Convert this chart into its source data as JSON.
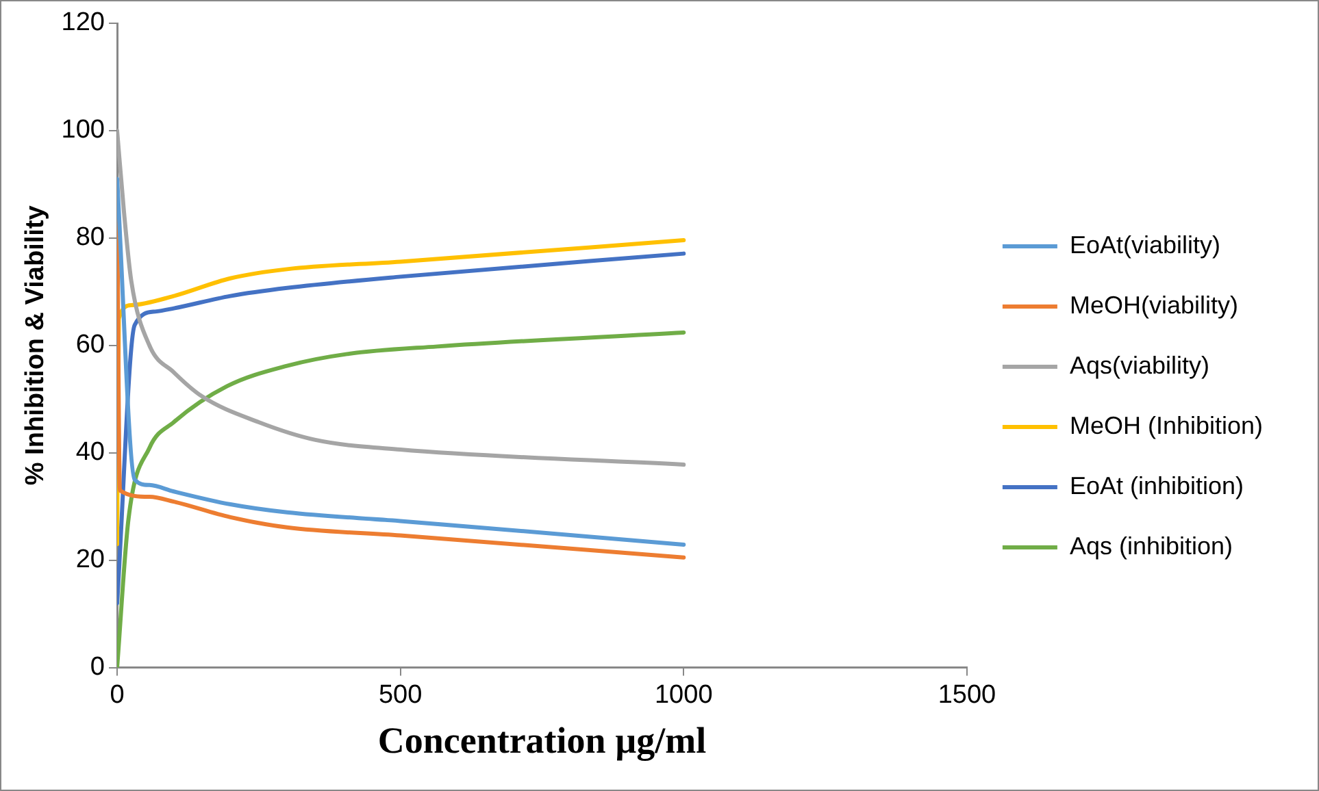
{
  "chart_data": {
    "type": "line",
    "xlabel": "Concentration µg/ml",
    "ylabel": "% Inhibition & Viability",
    "xlim": [
      0,
      1500
    ],
    "xticks": [
      0,
      500,
      1000,
      1500
    ],
    "ylim": [
      0,
      120
    ],
    "yticks": [
      0,
      20,
      40,
      60,
      80,
      100,
      120
    ],
    "grid": false,
    "legend": "right",
    "marker": "none",
    "line_style": "solid",
    "series": [
      {
        "name": "EoAt(viability)",
        "color": "#5b9bd5",
        "x": [
          0,
          31,
          57,
          100,
          200,
          300,
          500,
          1000
        ],
        "values": [
          91,
          35,
          34,
          32.8,
          30.4,
          28.9,
          27.3,
          22.9
        ]
      },
      {
        "name": "MeOH(viability)",
        "color": "#ed7d31",
        "x": [
          0,
          5,
          57,
          100,
          200,
          300,
          500,
          1000
        ],
        "values": [
          88,
          33,
          31.8,
          30.9,
          28,
          26.1,
          24.6,
          20.5
        ]
      },
      {
        "name": "Aqs(viability)",
        "color": "#a5a5a5",
        "x": [
          0,
          12,
          25,
          57,
          100,
          150,
          250,
          350,
          500,
          1000
        ],
        "values": [
          100,
          85,
          72,
          60,
          55,
          50.5,
          45.7,
          42.4,
          40.6,
          37.8
        ]
      },
      {
        "name": "MeOH (Inhibition)",
        "color": "#ffc000",
        "x": [
          0,
          3,
          25,
          100,
          200,
          300,
          500,
          1000
        ],
        "values": [
          23,
          65,
          67.5,
          69.2,
          72.5,
          74.2,
          75.6,
          79.6
        ]
      },
      {
        "name": "EoAt (inhibition)",
        "color": "#4472c4",
        "x": [
          0,
          31,
          67,
          100,
          200,
          300,
          500,
          1000
        ],
        "values": [
          12,
          63.8,
          66.3,
          66.9,
          69.2,
          70.7,
          72.8,
          77.1
        ]
      },
      {
        "name": "Aqs (inhibition)",
        "color": "#70ad47",
        "x": [
          0,
          20,
          57,
          100,
          194,
          300,
          406,
          565,
          1000
        ],
        "values": [
          0,
          27.6,
          40.9,
          45.7,
          52.4,
          56.2,
          58.4,
          59.8,
          62.4
        ]
      }
    ]
  }
}
